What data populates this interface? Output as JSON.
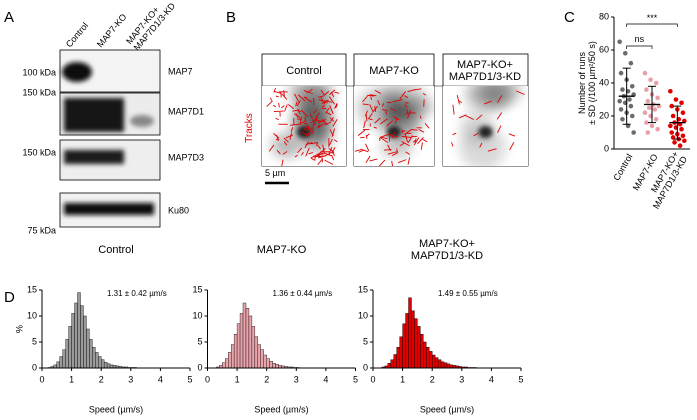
{
  "panel_labels": [
    "A",
    "B",
    "C",
    "D"
  ],
  "blot": {
    "lanes": [
      "Control",
      "MAP7-KO",
      "MAP7-KO+\nMAP7D1/3-KD"
    ],
    "proteins": [
      "MAP7",
      "MAP7D1",
      "MAP7D3",
      "Ku80"
    ],
    "markers": [
      "100 kDa",
      "150 kDa",
      "150 kDa",
      "75 kDa"
    ]
  },
  "images": {
    "conditions": [
      "Control",
      "MAP7-KO",
      "MAP7-KO+\nMAP7D1/3-KD"
    ],
    "side_label": "Tracks",
    "scale_bar": "5 µm"
  },
  "chart_data": [
    {
      "type": "strip",
      "ylabel": "Number of runs\n± SD (/100 µm²/50 s)",
      "categories": [
        "Control",
        "MAP7-KO",
        "MAP7-KO+\nMAP7D1/3-KD"
      ],
      "groups": [
        {
          "color": "#6b6b6b",
          "values": [
            65,
            58,
            52,
            46,
            42,
            38,
            36,
            35,
            33,
            32,
            30,
            29,
            28,
            26,
            24,
            22,
            20,
            18,
            14,
            10
          ],
          "mean": 32,
          "sd": 17
        },
        {
          "color": "#e8a0a8",
          "values": [
            46,
            42,
            40,
            36,
            33,
            31,
            29,
            27,
            26,
            25,
            24,
            22,
            20,
            18,
            16,
            14,
            12,
            10
          ],
          "mean": 27,
          "sd": 11
        },
        {
          "color": "#e00000",
          "values": [
            35,
            30,
            28,
            26,
            24,
            22,
            20,
            18,
            17,
            16,
            15,
            14,
            13,
            12,
            10,
            9,
            8,
            7,
            6,
            5,
            4,
            2
          ],
          "mean": 16,
          "sd": 10
        }
      ],
      "significance": [
        "ns",
        "***"
      ],
      "ylim": [
        0,
        80
      ],
      "yticks": [
        0,
        20,
        40,
        60,
        80
      ]
    },
    {
      "type": "histogram",
      "title": "Control",
      "annotation": "1.31 ± 0.42 µm/s",
      "color": "#9a9a9a",
      "xlabel": "Speed (µm/s)",
      "ylabel": "%",
      "bins": [
        0,
        0.1,
        0.2,
        0.3,
        0.4,
        0.5,
        0.6,
        0.7,
        0.8,
        0.9,
        1,
        1.1,
        1.2,
        1.3,
        1.4,
        1.5,
        1.6,
        1.7,
        1.8,
        1.9,
        2,
        2.1,
        2.2,
        2.3,
        2.4,
        2.5,
        2.6,
        2.7,
        2.8,
        2.9,
        3,
        3.1,
        3.2,
        3.3,
        3.4,
        3.5
      ],
      "values": [
        0,
        0,
        0.1,
        0.3,
        0.6,
        1.2,
        2.2,
        3.5,
        5.5,
        8,
        10.5,
        12.5,
        14.5,
        12,
        10,
        7.5,
        5.5,
        4,
        3,
        2.2,
        1.6,
        1.1,
        0.8,
        0.6,
        0.5,
        0.4,
        0.3,
        0.2,
        0.2,
        0.1,
        0.1,
        0.1,
        0,
        0,
        0
      ],
      "xlim": [
        0,
        5
      ],
      "xticks": [
        0,
        1,
        2,
        3,
        4,
        5
      ],
      "ylim": [
        0,
        15
      ],
      "yticks": [
        0,
        5,
        10,
        15
      ]
    },
    {
      "type": "histogram",
      "title": "MAP7-KO",
      "annotation": "1.36 ± 0.44 µm/s",
      "color": "#eaa4ac",
      "xlabel": "Speed (µm/s)",
      "bins": [
        0,
        0.1,
        0.2,
        0.3,
        0.4,
        0.5,
        0.6,
        0.7,
        0.8,
        0.9,
        1,
        1.1,
        1.2,
        1.3,
        1.4,
        1.5,
        1.6,
        1.7,
        1.8,
        1.9,
        2,
        2.1,
        2.2,
        2.3,
        2.4,
        2.5,
        2.6,
        2.7,
        2.8,
        2.9,
        3,
        3.1,
        3.2,
        3.3,
        3.4,
        3.5
      ],
      "values": [
        0,
        0,
        0,
        0.2,
        0.5,
        1,
        1.8,
        3,
        4.5,
        6.5,
        8.5,
        10.5,
        12.5,
        11.5,
        10,
        8,
        6,
        4.5,
        3.5,
        2.5,
        1.8,
        1.3,
        0.9,
        0.7,
        0.5,
        0.4,
        0.3,
        0.2,
        0.2,
        0.1,
        0.1,
        0,
        0,
        0,
        0
      ],
      "xlim": [
        0,
        5
      ],
      "xticks": [
        0,
        1,
        2,
        3,
        4,
        5
      ],
      "ylim": [
        0,
        15
      ],
      "yticks": [
        0,
        5,
        10,
        15
      ]
    },
    {
      "type": "histogram",
      "title": "MAP7-KO+\nMAP7D1/3-KD",
      "annotation": "1.49 ± 0.55 µm/s",
      "color": "#e00000",
      "xlabel": "Speed (µm/s)",
      "bins": [
        0,
        0.1,
        0.2,
        0.3,
        0.4,
        0.5,
        0.6,
        0.7,
        0.8,
        0.9,
        1,
        1.1,
        1.2,
        1.3,
        1.4,
        1.5,
        1.6,
        1.7,
        1.8,
        1.9,
        2,
        2.1,
        2.2,
        2.3,
        2.4,
        2.5,
        2.6,
        2.7,
        2.8,
        2.9,
        3,
        3.1,
        3.2,
        3.3,
        3.4,
        3.5
      ],
      "values": [
        0,
        0,
        0,
        0.2,
        0.4,
        0.9,
        1.6,
        2.6,
        4,
        6,
        8.5,
        10.5,
        13.5,
        11,
        9.5,
        8,
        6.5,
        5,
        4,
        3.2,
        2.5,
        2,
        1.6,
        1.2,
        1,
        0.8,
        0.6,
        0.5,
        0.4,
        0.3,
        0.2,
        0.2,
        0.1,
        0.1,
        0.1
      ],
      "xlim": [
        0,
        5
      ],
      "xticks": [
        0,
        1,
        2,
        3,
        4,
        5
      ],
      "ylim": [
        0,
        15
      ],
      "yticks": [
        0,
        5,
        10,
        15
      ]
    }
  ]
}
